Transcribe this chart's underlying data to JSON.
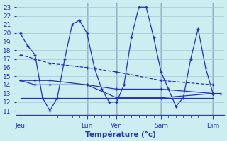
{
  "title": "Température (°c)",
  "background_color": "#cceef0",
  "grid_color": "#aaccd8",
  "line_color": "#2233bb",
  "vline_color": "#334499",
  "ylim": [
    10.5,
    23.5
  ],
  "yticks": [
    11,
    12,
    13,
    14,
    15,
    16,
    17,
    18,
    19,
    20,
    21,
    22,
    23
  ],
  "xlim": [
    -0.5,
    27.5
  ],
  "x_tick_positions": [
    0,
    9,
    13,
    19,
    26
  ],
  "x_tick_labels": [
    "Jeu",
    "Lun",
    "Ven",
    "Sam",
    "Dim"
  ],
  "vlines_x": [
    9,
    13,
    19,
    26
  ],
  "s1_x": [
    0,
    1,
    2,
    3,
    4,
    5,
    6,
    7,
    8,
    9,
    10,
    11,
    12,
    13,
    14,
    15,
    16,
    17,
    18,
    19,
    20,
    21,
    22,
    23,
    24,
    25,
    26,
    27
  ],
  "s1_y": [
    20,
    18.5,
    17.5,
    12.5,
    11,
    12.5,
    17,
    21,
    21.5,
    20,
    16,
    13.5,
    12,
    12,
    14,
    19.5,
    23,
    23,
    19.5,
    15.5,
    13.5,
    11.5,
    12.5,
    17,
    20.5,
    16,
    13,
    13
  ],
  "s2_x": [
    0,
    2,
    4,
    9,
    13,
    19,
    26
  ],
  "s2_y": [
    17.5,
    17,
    16.5,
    16,
    15.5,
    14.5,
    14
  ],
  "s3_x": [
    0,
    2,
    4,
    9,
    13,
    19,
    26
  ],
  "s3_y": [
    14.5,
    14.5,
    14.5,
    14,
    13.5,
    13.5,
    13
  ],
  "s4_x": [
    0,
    2,
    4,
    9,
    13,
    19,
    26
  ],
  "s4_y": [
    14.5,
    14,
    14,
    14,
    12.5,
    12.5,
    13
  ],
  "s5_x": [
    0,
    2,
    4,
    9,
    13,
    19,
    26
  ],
  "s5_y": [
    12.5,
    12.5,
    12.5,
    12.5,
    12.5,
    12.5,
    12.5
  ]
}
